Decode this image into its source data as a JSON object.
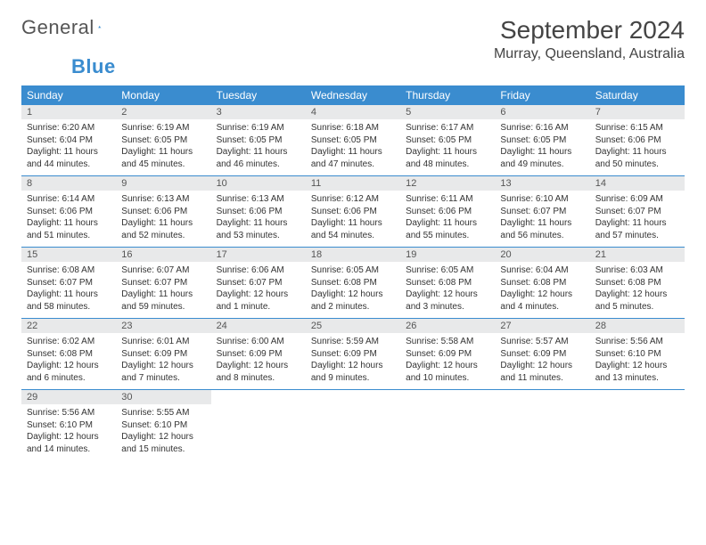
{
  "logo": {
    "text_general": "General",
    "text_blue": "Blue",
    "sail_color": "#3a8ccf"
  },
  "header": {
    "month_title": "September 2024",
    "location": "Murray, Queensland, Australia"
  },
  "colors": {
    "header_bg": "#3a8ccf",
    "header_fg": "#ffffff",
    "daynum_bg": "#e8e9ea",
    "row_border": "#3a8ccf",
    "text": "#333333"
  },
  "weekday_labels": [
    "Sunday",
    "Monday",
    "Tuesday",
    "Wednesday",
    "Thursday",
    "Friday",
    "Saturday"
  ],
  "days": [
    {
      "n": "1",
      "sunrise": "Sunrise: 6:20 AM",
      "sunset": "Sunset: 6:04 PM",
      "daylight": "Daylight: 11 hours and 44 minutes."
    },
    {
      "n": "2",
      "sunrise": "Sunrise: 6:19 AM",
      "sunset": "Sunset: 6:05 PM",
      "daylight": "Daylight: 11 hours and 45 minutes."
    },
    {
      "n": "3",
      "sunrise": "Sunrise: 6:19 AM",
      "sunset": "Sunset: 6:05 PM",
      "daylight": "Daylight: 11 hours and 46 minutes."
    },
    {
      "n": "4",
      "sunrise": "Sunrise: 6:18 AM",
      "sunset": "Sunset: 6:05 PM",
      "daylight": "Daylight: 11 hours and 47 minutes."
    },
    {
      "n": "5",
      "sunrise": "Sunrise: 6:17 AM",
      "sunset": "Sunset: 6:05 PM",
      "daylight": "Daylight: 11 hours and 48 minutes."
    },
    {
      "n": "6",
      "sunrise": "Sunrise: 6:16 AM",
      "sunset": "Sunset: 6:05 PM",
      "daylight": "Daylight: 11 hours and 49 minutes."
    },
    {
      "n": "7",
      "sunrise": "Sunrise: 6:15 AM",
      "sunset": "Sunset: 6:06 PM",
      "daylight": "Daylight: 11 hours and 50 minutes."
    },
    {
      "n": "8",
      "sunrise": "Sunrise: 6:14 AM",
      "sunset": "Sunset: 6:06 PM",
      "daylight": "Daylight: 11 hours and 51 minutes."
    },
    {
      "n": "9",
      "sunrise": "Sunrise: 6:13 AM",
      "sunset": "Sunset: 6:06 PM",
      "daylight": "Daylight: 11 hours and 52 minutes."
    },
    {
      "n": "10",
      "sunrise": "Sunrise: 6:13 AM",
      "sunset": "Sunset: 6:06 PM",
      "daylight": "Daylight: 11 hours and 53 minutes."
    },
    {
      "n": "11",
      "sunrise": "Sunrise: 6:12 AM",
      "sunset": "Sunset: 6:06 PM",
      "daylight": "Daylight: 11 hours and 54 minutes."
    },
    {
      "n": "12",
      "sunrise": "Sunrise: 6:11 AM",
      "sunset": "Sunset: 6:06 PM",
      "daylight": "Daylight: 11 hours and 55 minutes."
    },
    {
      "n": "13",
      "sunrise": "Sunrise: 6:10 AM",
      "sunset": "Sunset: 6:07 PM",
      "daylight": "Daylight: 11 hours and 56 minutes."
    },
    {
      "n": "14",
      "sunrise": "Sunrise: 6:09 AM",
      "sunset": "Sunset: 6:07 PM",
      "daylight": "Daylight: 11 hours and 57 minutes."
    },
    {
      "n": "15",
      "sunrise": "Sunrise: 6:08 AM",
      "sunset": "Sunset: 6:07 PM",
      "daylight": "Daylight: 11 hours and 58 minutes."
    },
    {
      "n": "16",
      "sunrise": "Sunrise: 6:07 AM",
      "sunset": "Sunset: 6:07 PM",
      "daylight": "Daylight: 11 hours and 59 minutes."
    },
    {
      "n": "17",
      "sunrise": "Sunrise: 6:06 AM",
      "sunset": "Sunset: 6:07 PM",
      "daylight": "Daylight: 12 hours and 1 minute."
    },
    {
      "n": "18",
      "sunrise": "Sunrise: 6:05 AM",
      "sunset": "Sunset: 6:08 PM",
      "daylight": "Daylight: 12 hours and 2 minutes."
    },
    {
      "n": "19",
      "sunrise": "Sunrise: 6:05 AM",
      "sunset": "Sunset: 6:08 PM",
      "daylight": "Daylight: 12 hours and 3 minutes."
    },
    {
      "n": "20",
      "sunrise": "Sunrise: 6:04 AM",
      "sunset": "Sunset: 6:08 PM",
      "daylight": "Daylight: 12 hours and 4 minutes."
    },
    {
      "n": "21",
      "sunrise": "Sunrise: 6:03 AM",
      "sunset": "Sunset: 6:08 PM",
      "daylight": "Daylight: 12 hours and 5 minutes."
    },
    {
      "n": "22",
      "sunrise": "Sunrise: 6:02 AM",
      "sunset": "Sunset: 6:08 PM",
      "daylight": "Daylight: 12 hours and 6 minutes."
    },
    {
      "n": "23",
      "sunrise": "Sunrise: 6:01 AM",
      "sunset": "Sunset: 6:09 PM",
      "daylight": "Daylight: 12 hours and 7 minutes."
    },
    {
      "n": "24",
      "sunrise": "Sunrise: 6:00 AM",
      "sunset": "Sunset: 6:09 PM",
      "daylight": "Daylight: 12 hours and 8 minutes."
    },
    {
      "n": "25",
      "sunrise": "Sunrise: 5:59 AM",
      "sunset": "Sunset: 6:09 PM",
      "daylight": "Daylight: 12 hours and 9 minutes."
    },
    {
      "n": "26",
      "sunrise": "Sunrise: 5:58 AM",
      "sunset": "Sunset: 6:09 PM",
      "daylight": "Daylight: 12 hours and 10 minutes."
    },
    {
      "n": "27",
      "sunrise": "Sunrise: 5:57 AM",
      "sunset": "Sunset: 6:09 PM",
      "daylight": "Daylight: 12 hours and 11 minutes."
    },
    {
      "n": "28",
      "sunrise": "Sunrise: 5:56 AM",
      "sunset": "Sunset: 6:10 PM",
      "daylight": "Daylight: 12 hours and 13 minutes."
    },
    {
      "n": "29",
      "sunrise": "Sunrise: 5:56 AM",
      "sunset": "Sunset: 6:10 PM",
      "daylight": "Daylight: 12 hours and 14 minutes."
    },
    {
      "n": "30",
      "sunrise": "Sunrise: 5:55 AM",
      "sunset": "Sunset: 6:10 PM",
      "daylight": "Daylight: 12 hours and 15 minutes."
    }
  ],
  "layout": {
    "start_weekday_index": 0,
    "trailing_empty": 5
  }
}
